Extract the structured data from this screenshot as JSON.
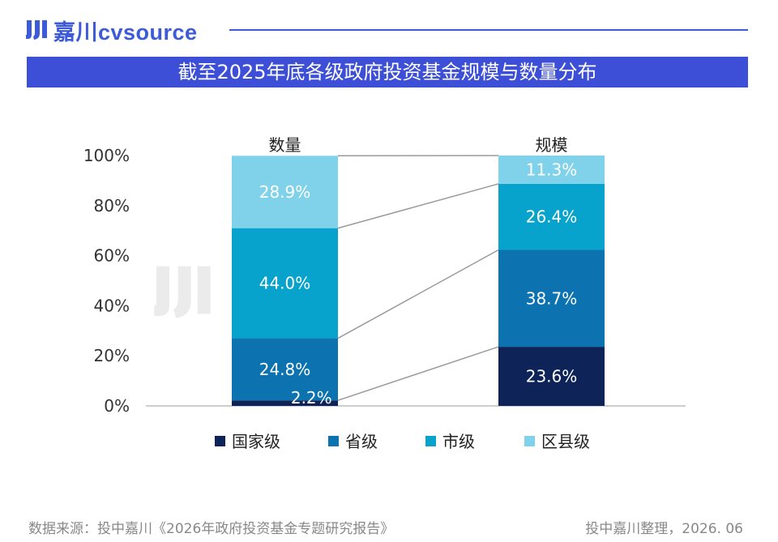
{
  "header": {
    "logo_text": "嘉川cvsource",
    "logo_icon": "jc-logo-icon",
    "accent": "#3d5bd9"
  },
  "title": "截至2025年底各级政府投资基金规模与数量分布",
  "footer": {
    "source": "数据来源：投中嘉川《2026年政府投资基金专题研究报告》",
    "credit": "投中嘉川整理，2026. 06"
  },
  "chart_data": {
    "type": "bar",
    "stacked": true,
    "percent": true,
    "categories": [
      "数量",
      "规模"
    ],
    "series": [
      {
        "name": "国家级",
        "values": [
          2.2,
          23.6
        ],
        "labels": [
          "2.2%",
          "23.6%"
        ],
        "color": "#0e2358"
      },
      {
        "name": "省级",
        "values": [
          24.8,
          38.7
        ],
        "labels": [
          "24.8%",
          "38.7%"
        ],
        "color": "#0c72b0"
      },
      {
        "name": "市级",
        "values": [
          44.0,
          26.4
        ],
        "labels": [
          "44.0%",
          "26.4%"
        ],
        "color": "#07a3cc"
      },
      {
        "name": "区县级",
        "values": [
          28.9,
          11.3
        ],
        "labels": [
          "28.9%",
          "11.3%"
        ],
        "color": "#80d2ea"
      }
    ],
    "y_ticks": [
      "0%",
      "20%",
      "40%",
      "60%",
      "80%",
      "100%"
    ],
    "ylim": [
      0,
      100
    ],
    "legend_position": "bottom",
    "connector_lines": true,
    "grid": false
  }
}
